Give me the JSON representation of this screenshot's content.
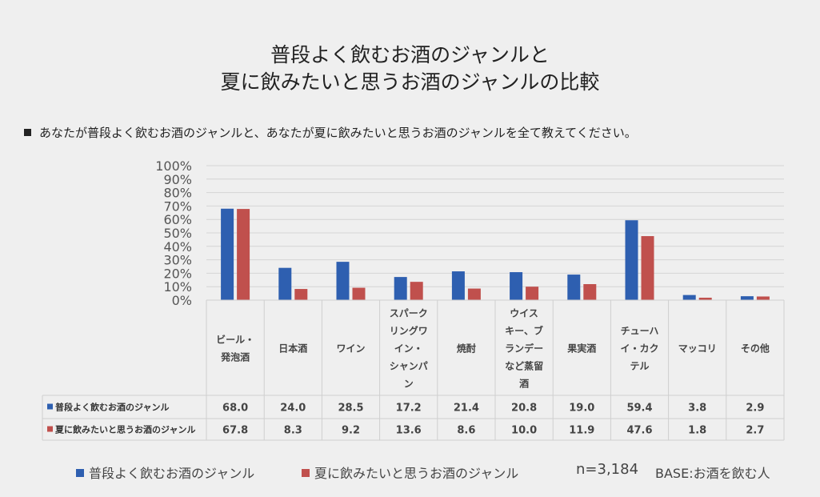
{
  "title_lines": [
    "普段よく飲むお酒のジャンルと",
    "夏に飲みたいと思うお酒のジャンルの比較"
  ],
  "question": "あなたが普段よく飲むお酒のジャンルと、あなたが夏に飲みたいと思うお酒のジャンルを全て教えてください。",
  "sample_size": "n=3,184",
  "base": "BASE:お酒を飲む人",
  "colors": {
    "series1": "#2e5fb0",
    "series2": "#c0504d"
  },
  "chart_data": {
    "type": "bar",
    "y_ticks": [
      "100%",
      "90%",
      "80%",
      "70%",
      "60%",
      "50%",
      "40%",
      "30%",
      "20%",
      "10%",
      "0%"
    ],
    "ylim": [
      0,
      100
    ],
    "grid": true,
    "categories": [
      [
        "ビール・",
        "発泡酒"
      ],
      [
        "日本酒"
      ],
      [
        "ワイン"
      ],
      [
        "スパーク",
        "リングワ",
        "イン・",
        "シャンパ",
        "ン"
      ],
      [
        "焼酎"
      ],
      [
        "ウイス",
        "キー、ブ",
        "ランデー",
        "など蒸留",
        "酒"
      ],
      [
        "果実酒"
      ],
      [
        "チューハ",
        "イ・カク",
        "テル"
      ],
      [
        "マッコリ"
      ],
      [
        "その他"
      ]
    ],
    "series": [
      {
        "name": "普段よく飲むお酒のジャンル",
        "values": [
          68.0,
          24.0,
          28.5,
          17.2,
          21.4,
          20.8,
          19.0,
          59.4,
          3.8,
          2.9
        ],
        "labels": [
          "68.0",
          "24.0",
          "28.5",
          "17.2",
          "21.4",
          "20.8",
          "19.0",
          "59.4",
          "3.8",
          "2.9"
        ]
      },
      {
        "name": "夏に飲みたいと思うお酒のジャンル",
        "values": [
          67.8,
          8.3,
          9.2,
          13.6,
          8.6,
          10.0,
          11.9,
          47.6,
          1.8,
          2.7
        ],
        "labels": [
          "67.8",
          "8.3",
          "9.2",
          "13.6",
          "8.6",
          "10.0",
          "11.9",
          "47.6",
          "1.8",
          "2.7"
        ]
      }
    ],
    "legend_position": "bottom"
  }
}
